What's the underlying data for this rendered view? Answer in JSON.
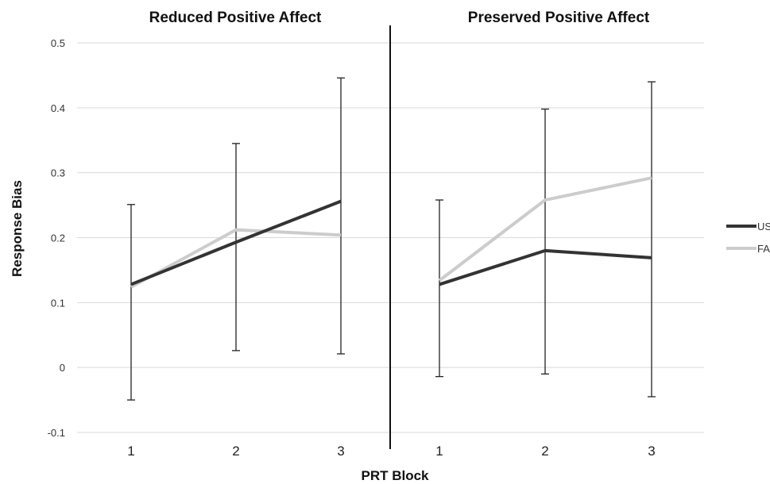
{
  "chart_data": {
    "type": "line",
    "ylabel": "Response Bias",
    "xlabel": "PRT Block",
    "ylim": [
      -0.1,
      0.5
    ],
    "yticks": [
      -0.1,
      0,
      0.1,
      0.2,
      0.3,
      0.4,
      0.5
    ],
    "ytick_labels": [
      "-0.1",
      "0",
      "0.1",
      "0.2",
      "0.3",
      "0.4",
      "0.5"
    ],
    "grid": true,
    "legend_placement": "right",
    "legend": [
      {
        "label": "US",
        "color": "#333333"
      },
      {
        "label": "FA",
        "color": "#cccccc"
      }
    ],
    "panels": [
      {
        "title": "Reduced Positive Affect",
        "categories": [
          "1",
          "2",
          "3"
        ],
        "series": [
          {
            "name": "US",
            "color": "#333333",
            "values": [
              0.128,
              0.193,
              0.256
            ]
          },
          {
            "name": "FA",
            "color": "#cccccc",
            "values": [
              0.124,
              0.212,
              0.204
            ]
          }
        ],
        "error_bars": [
          {
            "category": "1",
            "low": -0.05,
            "high": 0.251
          },
          {
            "category": "2",
            "low": 0.026,
            "high": 0.345
          },
          {
            "category": "3",
            "low": 0.021,
            "high": 0.446
          }
        ]
      },
      {
        "title": "Preserved Positive Affect",
        "categories": [
          "1",
          "2",
          "3"
        ],
        "series": [
          {
            "name": "US",
            "color": "#333333",
            "values": [
              0.128,
              0.18,
              0.169
            ]
          },
          {
            "name": "FA",
            "color": "#cccccc",
            "values": [
              0.134,
              0.258,
              0.292
            ]
          }
        ],
        "error_bars": [
          {
            "category": "1",
            "low": -0.014,
            "high": 0.258
          },
          {
            "category": "2",
            "low": -0.01,
            "high": 0.398
          },
          {
            "category": "3",
            "low": -0.045,
            "high": 0.44
          }
        ]
      }
    ]
  }
}
